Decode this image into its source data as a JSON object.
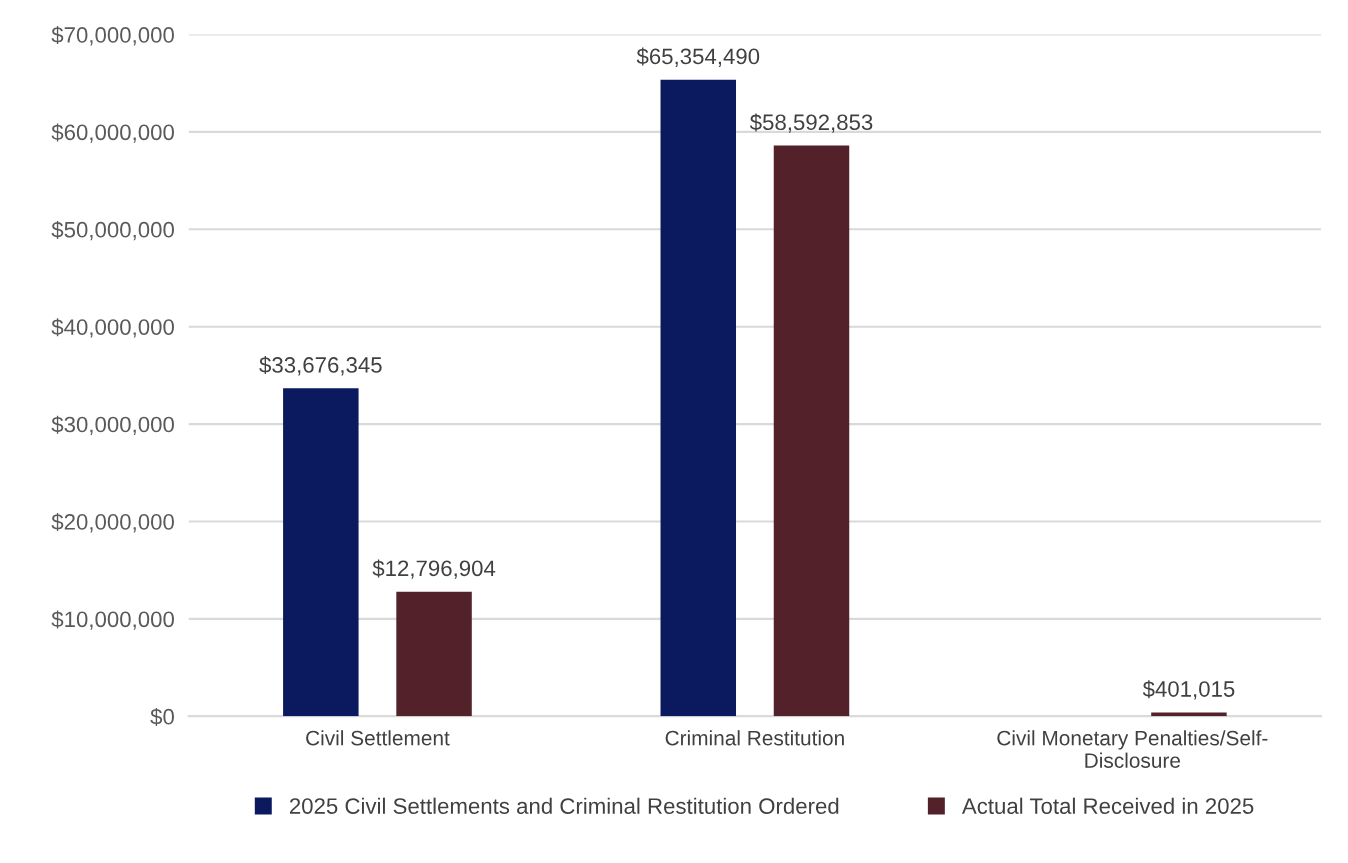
{
  "chart_data": {
    "type": "bar",
    "categories": [
      "Civil Settlement",
      "Criminal Restitution",
      "Civil Monetary Penalties/Self-\nDisclosure"
    ],
    "series": [
      {
        "name": "2025 Civil Settlements and Criminal Restitution Ordered",
        "color": "#0b1a5e",
        "values": [
          33676345,
          65354490,
          null
        ],
        "value_labels": [
          "$33,676,345",
          "$65,354,490",
          null
        ]
      },
      {
        "name": "Actual Total Received in 2025",
        "color": "#53212a",
        "values": [
          12796904,
          58592853,
          401015
        ],
        "value_labels": [
          "$12,796,904",
          "$58,592,853",
          "$401,015"
        ]
      }
    ],
    "ylim": [
      0,
      70000000
    ],
    "yticks": [
      {
        "value": 0,
        "label": "$0"
      },
      {
        "value": 10000000,
        "label": "$10,000,000"
      },
      {
        "value": 20000000,
        "label": "$20,000,000"
      },
      {
        "value": 30000000,
        "label": "$30,000,000"
      },
      {
        "value": 40000000,
        "label": "$40,000,000"
      },
      {
        "value": 50000000,
        "label": "$50,000,000"
      },
      {
        "value": 60000000,
        "label": "$60,000,000"
      },
      {
        "value": 70000000,
        "label": "$70,000,000"
      }
    ],
    "grid": "y",
    "legend": "bottom"
  }
}
